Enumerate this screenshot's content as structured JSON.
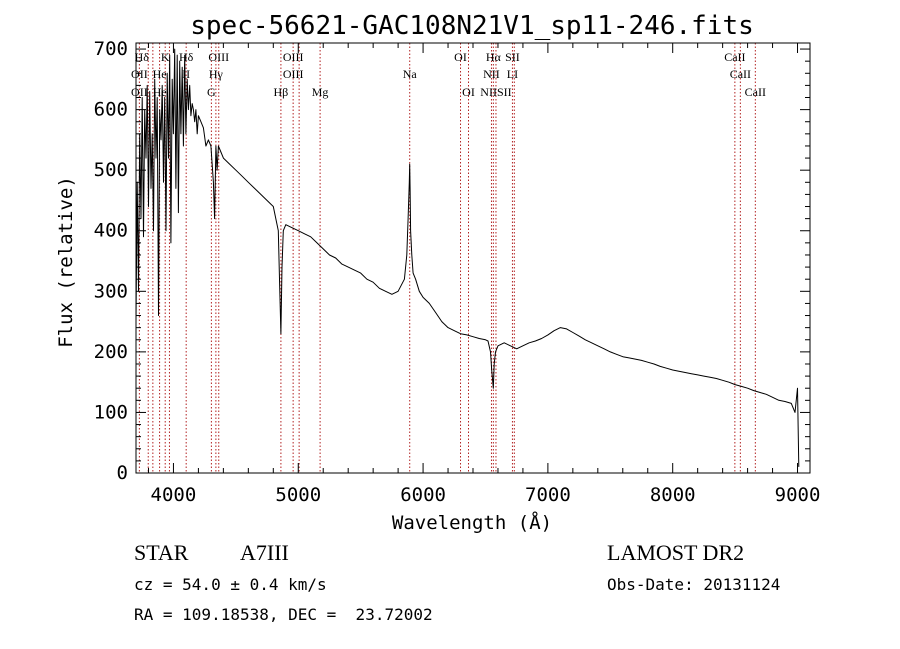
{
  "chart_data": {
    "type": "line",
    "title": "spec-56621-GAC108N21V1_sp11-246.fits",
    "xlabel": "Wavelength (Å)",
    "ylabel": "Flux (relative)",
    "xlim": [
      3700,
      9100
    ],
    "ylim": [
      0,
      710
    ],
    "xticks": [
      4000,
      5000,
      6000,
      7000,
      8000,
      9000
    ],
    "xtick_labels": [
      "4000",
      "5000",
      "6000",
      "7000",
      "8000",
      "9000"
    ],
    "yticks": [
      0,
      100,
      200,
      300,
      400,
      500,
      600,
      700
    ],
    "ytick_labels": [
      "0",
      "100",
      "200",
      "300",
      "400",
      "500",
      "600",
      "700"
    ],
    "grid": false,
    "legend": "none",
    "series": [
      {
        "x": [
          3700,
          3710,
          3720,
          3730,
          3740,
          3750,
          3760,
          3770,
          3780,
          3790,
          3800,
          3810,
          3820,
          3830,
          3840,
          3850,
          3860,
          3870,
          3880,
          3890,
          3900,
          3910,
          3920,
          3930,
          3940,
          3950,
          3960,
          3970,
          3980,
          3990,
          4000,
          4010,
          4020,
          4030,
          4040,
          4050,
          4060,
          4070,
          4080,
          4090,
          4100,
          4110,
          4120,
          4130,
          4140,
          4150,
          4160,
          4170,
          4180,
          4190,
          4200,
          4220,
          4240,
          4260,
          4280,
          4300,
          4320,
          4330,
          4340,
          4350,
          4360,
          4380,
          4400,
          4450,
          4500,
          4550,
          4600,
          4650,
          4700,
          4750,
          4800,
          4820,
          4840,
          4850,
          4861,
          4870,
          4880,
          4900,
          4950,
          5000,
          5050,
          5100,
          5150,
          5200,
          5250,
          5300,
          5350,
          5400,
          5450,
          5500,
          5550,
          5600,
          5650,
          5700,
          5750,
          5800,
          5850,
          5870,
          5880,
          5890,
          5893,
          5896,
          5900,
          5910,
          5920,
          5940,
          5970,
          6000,
          6050,
          6100,
          6150,
          6200,
          6250,
          6300,
          6350,
          6400,
          6450,
          6500,
          6520,
          6540,
          6550,
          6563,
          6570,
          6580,
          6600,
          6650,
          6700,
          6750,
          6800,
          6850,
          6900,
          6950,
          7000,
          7050,
          7100,
          7150,
          7200,
          7250,
          7300,
          7350,
          7400,
          7450,
          7500,
          7550,
          7600,
          7650,
          7700,
          7750,
          7800,
          7850,
          7900,
          7950,
          8000,
          8050,
          8100,
          8150,
          8200,
          8250,
          8300,
          8350,
          8400,
          8450,
          8500,
          8550,
          8600,
          8650,
          8700,
          8750,
          8800,
          8850,
          8900,
          8950,
          8980,
          9000,
          9010
        ],
        "y": [
          250,
          480,
          300,
          560,
          420,
          620,
          390,
          600,
          520,
          640,
          440,
          630,
          470,
          560,
          400,
          650,
          520,
          620,
          260,
          600,
          550,
          640,
          480,
          620,
          400,
          660,
          520,
          690,
          380,
          650,
          560,
          700,
          470,
          690,
          430,
          680,
          560,
          670,
          540,
          690,
          560,
          650,
          600,
          640,
          590,
          610,
          600,
          580,
          600,
          560,
          590,
          580,
          570,
          540,
          550,
          540,
          480,
          420,
          540,
          500,
          540,
          530,
          520,
          510,
          500,
          490,
          480,
          470,
          460,
          450,
          440,
          420,
          400,
          320,
          230,
          340,
          400,
          410,
          405,
          400,
          395,
          390,
          380,
          370,
          360,
          355,
          345,
          340,
          335,
          330,
          320,
          315,
          305,
          300,
          295,
          300,
          320,
          360,
          420,
          480,
          510,
          470,
          400,
          360,
          330,
          320,
          300,
          290,
          280,
          265,
          250,
          240,
          235,
          230,
          228,
          225,
          222,
          220,
          218,
          200,
          170,
          140,
          180,
          200,
          210,
          215,
          210,
          205,
          210,
          215,
          218,
          222,
          228,
          235,
          240,
          238,
          232,
          226,
          220,
          215,
          210,
          205,
          200,
          196,
          192,
          190,
          188,
          186,
          183,
          180,
          176,
          173,
          170,
          168,
          166,
          164,
          162,
          160,
          158,
          156,
          153,
          150,
          146,
          143,
          140,
          136,
          133,
          130,
          125,
          120,
          118,
          115,
          100,
          140,
          10
        ]
      }
    ],
    "line_ids": [
      {
        "label": "Hδ",
        "wave": 3746,
        "row": 1
      },
      {
        "label": "K",
        "wave": 3934,
        "row": 1
      },
      {
        "label": "Hδ",
        "wave": 4102,
        "row": 1
      },
      {
        "label": "OIII",
        "wave": 4363,
        "row": 1
      },
      {
        "label": "OIII",
        "wave": 4959,
        "row": 1
      },
      {
        "label": "OI",
        "wave": 6300,
        "row": 1
      },
      {
        "label": "Hα",
        "wave": 6563,
        "row": 1
      },
      {
        "label": "SII",
        "wave": 6716,
        "row": 1
      },
      {
        "label": "CaII",
        "wave": 8498,
        "row": 1
      },
      {
        "label": "OII",
        "wave": 3727,
        "row": 2
      },
      {
        "label": "He",
        "wave": 3889,
        "row": 2
      },
      {
        "label": "II",
        "wave": 4102,
        "row": 2
      },
      {
        "label": "Hγ",
        "wave": 4340,
        "row": 2
      },
      {
        "label": "OIII",
        "wave": 4959,
        "row": 2
      },
      {
        "label": "Na",
        "wave": 5893,
        "row": 2
      },
      {
        "label": "NII",
        "wave": 6548,
        "row": 2
      },
      {
        "label": "LI",
        "wave": 6716,
        "row": 2
      },
      {
        "label": "CaII",
        "wave": 8542,
        "row": 2
      },
      {
        "label": "OII",
        "wave": 3727,
        "row": 3
      },
      {
        "label": "He",
        "wave": 3889,
        "row": 3
      },
      {
        "label": "G",
        "wave": 4304,
        "row": 3
      },
      {
        "label": "Hβ",
        "wave": 4861,
        "row": 3
      },
      {
        "label": "Mg",
        "wave": 5175,
        "row": 3
      },
      {
        "label": "OI",
        "wave": 6364,
        "row": 3
      },
      {
        "label": "NIISII",
        "wave": 6584,
        "row": 3
      },
      {
        "label": "CaII",
        "wave": 8662,
        "row": 3
      }
    ],
    "line_marker_waves": [
      3727,
      3798,
      3835,
      3889,
      3934,
      3968,
      4102,
      4304,
      4340,
      4363,
      4861,
      4959,
      5007,
      5175,
      5893,
      6300,
      6364,
      6548,
      6563,
      6584,
      6716,
      6731,
      8498,
      8542,
      8662
    ],
    "colors": {
      "spectrum": "#000000",
      "line_markers": "#b22222",
      "axes": "#000000"
    }
  },
  "info": {
    "object_class": "STAR",
    "subclass": "A7III",
    "survey": "LAMOST DR2",
    "cz": "cz = 54.0 ± 0.4 km/s",
    "obs_date": "Obs-Date: 20131124",
    "coords": "RA = 109.18538, DEC =  23.72002"
  }
}
